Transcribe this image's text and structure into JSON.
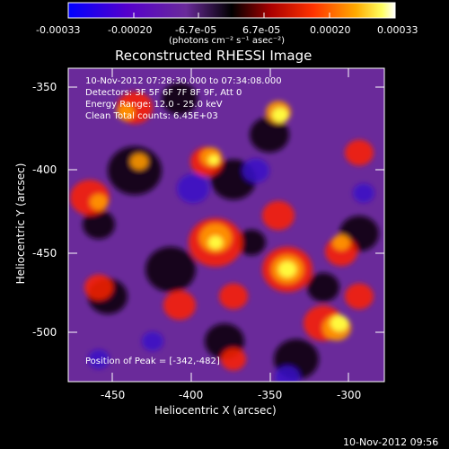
{
  "colorbar": {
    "ticks": [
      "-0.00033",
      "-0.00020",
      "-6.7e-05",
      "6.7e-05",
      "0.00020",
      "0.00033"
    ],
    "units": "(photons cm⁻² s⁻¹ asec⁻²)"
  },
  "image": {
    "title": "Reconstructed RHESSI Image",
    "annotations": [
      "10-Nov-2012 07:28:30.000 to 07:34:08.000",
      "Detectors: 3F 5F 6F 7F 8F 9F, Att 0",
      "Energy Range: 12.0 - 25.0 keV",
      "Clean     Total counts: 6.45E+03"
    ],
    "peak": "Position of Peak = [-342,-482]"
  },
  "axes": {
    "x": {
      "label": "Heliocentric X (arcsec)",
      "ticks": [
        "-450",
        "-400",
        "-350",
        "-300"
      ]
    },
    "y": {
      "label": "Heliocentric Y (arcsec)",
      "ticks": [
        "-350",
        "-400",
        "-450",
        "-500"
      ]
    }
  },
  "timestamp": "10-Nov-2012 09:56",
  "colors": {
    "background": "#000000",
    "foreground": "#ffffff",
    "colormap": "blue-purple-black-red-orange-yellow-white"
  }
}
